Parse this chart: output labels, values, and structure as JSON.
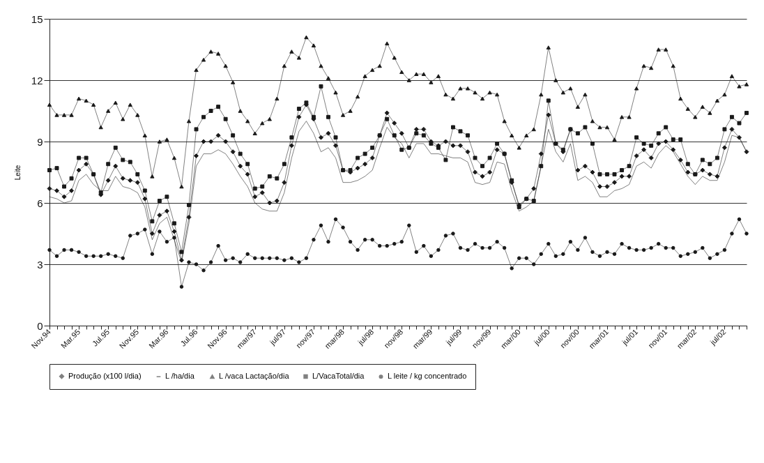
{
  "chart_data": {
    "type": "line",
    "ylabel": "Leite",
    "categories": [
      "Nov.94",
      null,
      null,
      null,
      "Mar.95",
      null,
      null,
      null,
      "Jul.95",
      null,
      null,
      null,
      "Nov.95",
      null,
      null,
      null,
      "Mar.96",
      null,
      null,
      null,
      "Jul.96",
      null,
      null,
      null,
      "Nov.96",
      null,
      null,
      null,
      "mar/97",
      null,
      null,
      null,
      "jul/97",
      null,
      null,
      null,
      "nov/97",
      null,
      null,
      null,
      "mar/98",
      null,
      null,
      null,
      "jul/98",
      null,
      null,
      null,
      "nov/98",
      null,
      null,
      null,
      "mar/99",
      null,
      null,
      null,
      "jul/99",
      null,
      null,
      null,
      "nov/99",
      null,
      null,
      null,
      "mar/00",
      null,
      null,
      null,
      "jul/00",
      null,
      null,
      null,
      "nov/00",
      null,
      null,
      null,
      "mar/01",
      null,
      null,
      null,
      "jul/01",
      null,
      null,
      null,
      "nov/01",
      null,
      null,
      null,
      "mar/02",
      null,
      null,
      null,
      "jul/02",
      null,
      null,
      null
    ],
    "series": [
      {
        "name": "Produção (x100 l/dia)",
        "color": "#1a1a1a",
        "marker": "diamond",
        "values": [
          6.7,
          6.6,
          6.3,
          6.6,
          7.6,
          7.9,
          7.4,
          6.4,
          7.1,
          7.8,
          7.2,
          7.1,
          7.0,
          6.2,
          4.5,
          5.4,
          5.6,
          4.6,
          3.2,
          5.3,
          8.3,
          9.0,
          9.0,
          9.3,
          9.0,
          8.5,
          7.8,
          7.4,
          6.3,
          6.5,
          6.0,
          6.1,
          7.0,
          8.8,
          10.2,
          10.8,
          10.1,
          9.2,
          9.4,
          8.8,
          7.6,
          7.5,
          7.7,
          7.9,
          8.2,
          9.3,
          10.4,
          9.9,
          9.4,
          8.7,
          9.6,
          9.6,
          9.0,
          8.8,
          9.0,
          8.8,
          8.8,
          8.5,
          7.5,
          7.3,
          7.5,
          8.6,
          8.4,
          7.0,
          5.9,
          6.2,
          6.7,
          8.4,
          10.3,
          8.9,
          8.5,
          9.6,
          7.6,
          7.8,
          7.5,
          6.8,
          6.8,
          7.0,
          7.3,
          7.3,
          8.3,
          8.6,
          8.2,
          8.9,
          9.0,
          8.6,
          8.1,
          7.5,
          7.4,
          7.6,
          7.4,
          7.3,
          8.7,
          9.6,
          9.2,
          8.5
        ]
      },
      {
        "name": "L /ha/dia",
        "color": "#1a1a1a",
        "marker": "none",
        "values": [
          6.3,
          6.2,
          6.0,
          6.1,
          7.1,
          7.4,
          6.9,
          6.6,
          6.6,
          7.3,
          6.8,
          6.7,
          6.5,
          5.8,
          4.2,
          5.0,
          5.3,
          4.2,
          3.1,
          5.0,
          7.8,
          8.4,
          8.4,
          8.6,
          8.4,
          7.9,
          7.3,
          6.8,
          6.0,
          5.7,
          5.6,
          5.6,
          6.5,
          8.2,
          9.5,
          10.0,
          9.4,
          8.5,
          8.7,
          8.2,
          7.0,
          7.0,
          7.1,
          7.3,
          7.6,
          8.7,
          9.7,
          9.2,
          8.9,
          8.2,
          8.9,
          8.9,
          8.4,
          8.4,
          8.3,
          8.2,
          8.2,
          8.0,
          7.0,
          6.9,
          7.0,
          8.0,
          7.9,
          6.6,
          5.6,
          5.8,
          6.1,
          7.8,
          9.6,
          8.5,
          8.0,
          8.9,
          7.1,
          7.3,
          7.0,
          6.3,
          6.3,
          6.6,
          6.7,
          6.9,
          7.8,
          8.0,
          7.7,
          8.4,
          8.8,
          8.5,
          7.9,
          7.3,
          6.9,
          7.3,
          7.1,
          7.1,
          8.0,
          9.3,
          9.2,
          8.5
        ]
      },
      {
        "name": "L /vaca Lactação/dia",
        "color": "#1a1a1a",
        "marker": "triangle",
        "values": [
          10.8,
          10.3,
          10.3,
          10.3,
          11.1,
          11.0,
          10.8,
          9.7,
          10.5,
          10.9,
          10.1,
          10.8,
          10.3,
          9.3,
          7.3,
          9.0,
          9.1,
          8.2,
          6.8,
          10.0,
          12.5,
          13.0,
          13.4,
          13.3,
          12.7,
          11.9,
          10.5,
          10.0,
          9.4,
          9.9,
          10.1,
          11.1,
          12.7,
          13.4,
          13.1,
          14.1,
          13.7,
          12.7,
          12.1,
          11.4,
          10.3,
          10.5,
          11.2,
          12.2,
          12.5,
          12.7,
          13.8,
          13.1,
          12.4,
          12.0,
          12.3,
          12.3,
          11.9,
          12.2,
          11.3,
          11.1,
          11.6,
          11.6,
          11.4,
          11.1,
          11.4,
          11.3,
          10.0,
          9.3,
          8.7,
          9.3,
          9.6,
          11.3,
          13.6,
          12.0,
          11.4,
          11.6,
          10.7,
          11.3,
          10.0,
          9.7,
          9.7,
          9.1,
          10.2,
          10.2,
          11.6,
          12.7,
          12.6,
          13.5,
          13.5,
          12.7,
          11.1,
          10.6,
          10.2,
          10.7,
          10.4,
          11.0,
          11.3,
          12.2,
          11.7,
          11.8
        ]
      },
      {
        "name": "L/VacaTotal/dia",
        "color": "#1a1a1a",
        "marker": "square",
        "values": [
          7.6,
          7.7,
          6.8,
          7.2,
          8.2,
          8.2,
          7.4,
          6.5,
          7.9,
          8.7,
          8.1,
          8.0,
          7.4,
          6.6,
          5.1,
          6.1,
          6.3,
          5.0,
          3.6,
          5.9,
          9.6,
          10.2,
          10.5,
          10.7,
          10.1,
          9.3,
          8.4,
          7.9,
          6.7,
          6.8,
          7.3,
          7.2,
          7.9,
          9.2,
          10.6,
          10.9,
          10.2,
          11.7,
          10.2,
          9.2,
          7.6,
          7.6,
          8.2,
          8.4,
          8.7,
          9.3,
          10.1,
          9.3,
          8.6,
          8.7,
          9.4,
          9.3,
          8.9,
          8.7,
          8.1,
          9.7,
          9.5,
          9.3,
          8.2,
          7.8,
          8.2,
          8.9,
          8.4,
          7.1,
          5.8,
          6.2,
          6.1,
          7.8,
          11.0,
          8.9,
          8.6,
          9.6,
          9.4,
          9.7,
          8.9,
          7.4,
          7.4,
          7.4,
          7.6,
          7.8,
          9.2,
          8.9,
          8.8,
          9.4,
          9.7,
          9.1,
          9.1,
          7.9,
          7.4,
          8.1,
          7.9,
          8.2,
          9.6,
          10.2,
          9.9,
          10.4
        ]
      },
      {
        "name": "L leite / kg concentrado",
        "color": "#1a1a1a",
        "marker": "circle",
        "values": [
          3.7,
          3.4,
          3.7,
          3.7,
          3.6,
          3.4,
          3.4,
          3.4,
          3.5,
          3.4,
          3.3,
          4.4,
          4.5,
          4.7,
          3.5,
          4.6,
          4.1,
          4.3,
          1.9,
          3.1,
          3.0,
          2.7,
          3.1,
          3.9,
          3.2,
          3.3,
          3.1,
          3.5,
          3.3,
          3.3,
          3.3,
          3.3,
          3.2,
          3.3,
          3.1,
          3.3,
          4.2,
          4.9,
          4.1,
          5.2,
          4.8,
          4.1,
          3.7,
          4.2,
          4.2,
          3.9,
          3.9,
          4.0,
          4.1,
          4.9,
          3.6,
          3.9,
          3.4,
          3.7,
          4.4,
          4.5,
          3.8,
          3.7,
          4.0,
          3.8,
          3.8,
          4.1,
          3.8,
          2.8,
          3.3,
          3.3,
          3.0,
          3.5,
          4.0,
          3.4,
          3.5,
          4.1,
          3.7,
          4.3,
          3.6,
          3.4,
          3.6,
          3.5,
          4.0,
          3.8,
          3.7,
          3.7,
          3.8,
          4.0,
          3.8,
          3.8,
          3.4,
          3.5,
          3.6,
          3.8,
          3.3,
          3.5,
          3.7,
          4.5,
          5.2,
          4.5
        ]
      }
    ],
    "ylim": [
      0,
      15
    ],
    "yticks": [
      0,
      3,
      6,
      9,
      12,
      15
    ],
    "grid": "y",
    "legend": "bottom"
  }
}
